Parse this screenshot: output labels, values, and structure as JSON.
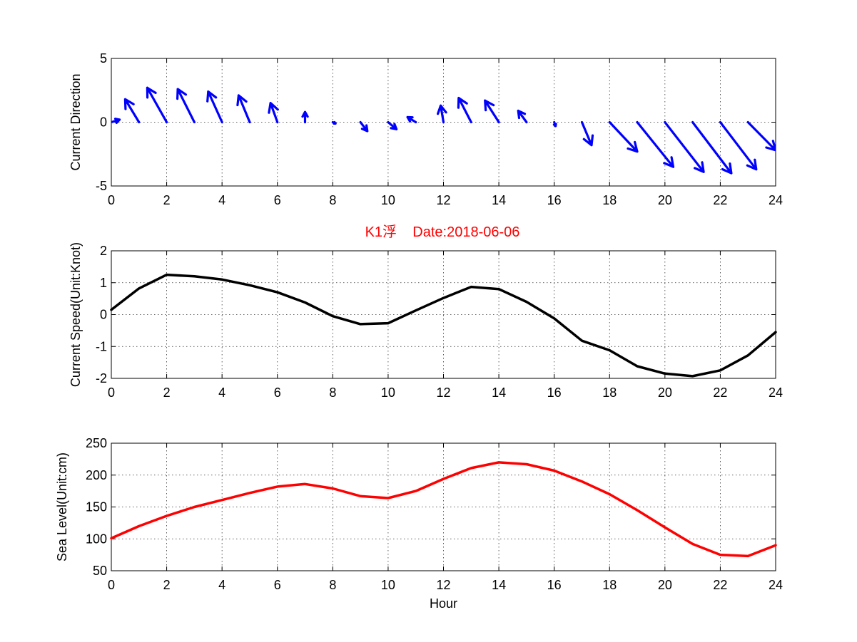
{
  "title": "K1浮    Date:2018-06-06",
  "title_color": "#ff0000",
  "chart_data": [
    {
      "type": "quiver",
      "ylabel": "Current Direction",
      "xlabel": "",
      "xlim": [
        0,
        24
      ],
      "ylim": [
        -5,
        5
      ],
      "xticks": [
        "0",
        "2",
        "4",
        "6",
        "8",
        "10",
        "12",
        "14",
        "16",
        "18",
        "20",
        "22",
        "24"
      ],
      "yticks": [
        "-5",
        "0",
        "5"
      ],
      "grid": true,
      "color": "#0000ff",
      "vectors": [
        {
          "x": 0,
          "u": 0.3,
          "v": 0.2
        },
        {
          "x": 1,
          "u": -0.5,
          "v": 1.8
        },
        {
          "x": 2,
          "u": -0.7,
          "v": 2.7
        },
        {
          "x": 3,
          "u": -0.6,
          "v": 2.6
        },
        {
          "x": 4,
          "u": -0.5,
          "v": 2.4
        },
        {
          "x": 5,
          "u": -0.4,
          "v": 2.1
        },
        {
          "x": 6,
          "u": -0.25,
          "v": 1.5
        },
        {
          "x": 7,
          "u": 0.0,
          "v": 0.8
        },
        {
          "x": 8,
          "u": 0.1,
          "v": -0.1
        },
        {
          "x": 9,
          "u": 0.25,
          "v": -0.7
        },
        {
          "x": 10,
          "u": 0.3,
          "v": -0.55
        },
        {
          "x": 11,
          "u": -0.3,
          "v": 0.4
        },
        {
          "x": 12,
          "u": -0.1,
          "v": 1.3
        },
        {
          "x": 13,
          "u": -0.45,
          "v": 1.9
        },
        {
          "x": 14,
          "u": -0.5,
          "v": 1.7
        },
        {
          "x": 15,
          "u": -0.3,
          "v": 0.9
        },
        {
          "x": 16,
          "u": 0.05,
          "v": -0.3
        },
        {
          "x": 17,
          "u": 0.35,
          "v": -1.8
        },
        {
          "x": 18,
          "u": 1.0,
          "v": -2.3
        },
        {
          "x": 19,
          "u": 1.3,
          "v": -3.5
        },
        {
          "x": 20,
          "u": 1.4,
          "v": -3.9
        },
        {
          "x": 21,
          "u": 1.4,
          "v": -4.0
        },
        {
          "x": 22,
          "u": 1.3,
          "v": -3.7
        },
        {
          "x": 23,
          "u": 1.0,
          "v": -2.2
        }
      ]
    },
    {
      "type": "line",
      "ylabel": "Current Speed(Unit:Knot)",
      "xlabel": "",
      "xlim": [
        0,
        24
      ],
      "ylim": [
        -2,
        2
      ],
      "xticks": [
        "0",
        "2",
        "4",
        "6",
        "8",
        "10",
        "12",
        "14",
        "16",
        "18",
        "20",
        "22",
        "24"
      ],
      "yticks": [
        "-2",
        "-1",
        "0",
        "1",
        "2"
      ],
      "grid": true,
      "color": "#000000",
      "x": [
        0,
        1,
        2,
        3,
        4,
        5,
        6,
        7,
        8,
        9,
        10,
        11,
        12,
        13,
        14,
        15,
        16,
        17,
        18,
        19,
        20,
        21,
        22,
        23,
        24
      ],
      "y": [
        0.15,
        0.82,
        1.25,
        1.2,
        1.1,
        0.92,
        0.7,
        0.38,
        -0.05,
        -0.3,
        -0.27,
        0.13,
        0.52,
        0.87,
        0.8,
        0.4,
        -0.12,
        -0.82,
        -1.12,
        -1.62,
        -1.85,
        -1.93,
        -1.75,
        -1.28,
        -0.55
      ]
    },
    {
      "type": "line",
      "ylabel": "Sea Level(Unit:cm)",
      "xlabel": "Hour",
      "xlim": [
        0,
        24
      ],
      "ylim": [
        50,
        250
      ],
      "xticks": [
        "0",
        "2",
        "4",
        "6",
        "8",
        "10",
        "12",
        "14",
        "16",
        "18",
        "20",
        "22",
        "24"
      ],
      "yticks": [
        "50",
        "100",
        "150",
        "200",
        "250"
      ],
      "grid": true,
      "color": "#ff0000",
      "x": [
        0,
        1,
        2,
        3,
        4,
        5,
        6,
        7,
        8,
        9,
        10,
        11,
        12,
        13,
        14,
        15,
        16,
        17,
        18,
        19,
        20,
        21,
        22,
        23,
        24
      ],
      "y": [
        101,
        120,
        136,
        150,
        161,
        172,
        182,
        186,
        179,
        167,
        164,
        175,
        194,
        211,
        220,
        217,
        207,
        190,
        170,
        145,
        118,
        92,
        75,
        73,
        90
      ]
    }
  ]
}
